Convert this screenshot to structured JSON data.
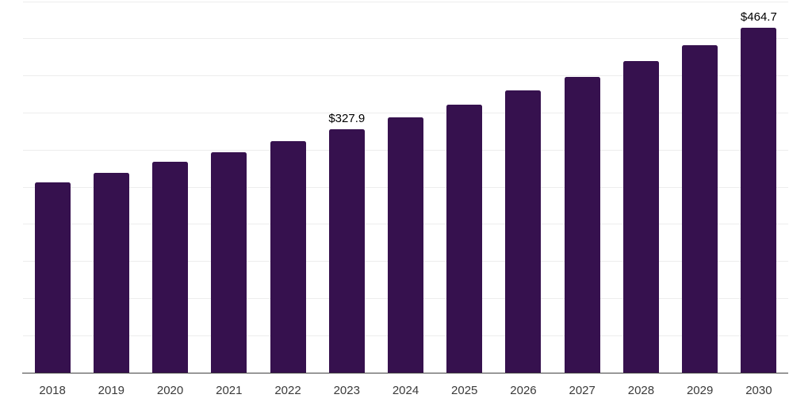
{
  "chart_data": {
    "type": "bar",
    "title": "",
    "xlabel": "",
    "ylabel": "",
    "categories": [
      "2018",
      "2019",
      "2020",
      "2021",
      "2022",
      "2023",
      "2024",
      "2025",
      "2026",
      "2027",
      "2028",
      "2029",
      "2030"
    ],
    "values": [
      256.6,
      269.0,
      283.7,
      297.5,
      312.0,
      327.9,
      343.7,
      361.5,
      380.4,
      398.9,
      419.6,
      441.6,
      464.7
    ],
    "data_labels": [
      {
        "category": "2023",
        "index": 5,
        "text": "$327.9"
      },
      {
        "category": "2030",
        "index": 12,
        "text": "$464.7"
      }
    ],
    "ylim": [
      0,
      500
    ],
    "gridline_step": 50,
    "grid": "horizontal",
    "legend": "none",
    "y_axis_tick_labels": "none",
    "colors": {
      "bar": "#36114E",
      "gridline": "#EDEDED",
      "axis_line": "#424242",
      "tick_label": "#3A3A3A",
      "data_label": "#000000",
      "background": "#FFFFFF"
    }
  }
}
